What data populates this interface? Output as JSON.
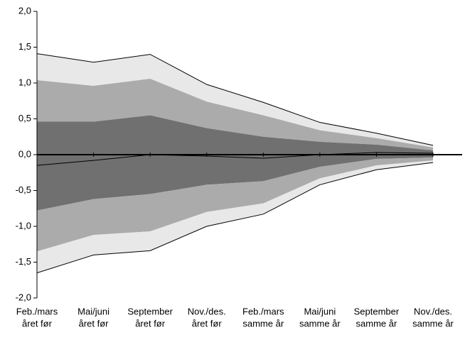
{
  "chart_data": {
    "type": "fan",
    "categories": [
      [
        "Feb./mars",
        "året før"
      ],
      [
        "Mai/juni",
        "året før"
      ],
      [
        "September",
        "året før"
      ],
      [
        "Nov./des.",
        "året før"
      ],
      [
        "Feb./mars",
        "samme år"
      ],
      [
        "Mai/juni",
        "samme år"
      ],
      [
        "September",
        "samme år"
      ],
      [
        "Nov./des.",
        "samme år"
      ]
    ],
    "series": [
      {
        "values": [
          1.41,
          1.29,
          1.4,
          0.98,
          0.73,
          0.45,
          0.3,
          0.13
        ],
        "color": "#000000",
        "fill": "#e8e8e8"
      },
      {
        "values": [
          1.04,
          0.96,
          1.06,
          0.74,
          0.55,
          0.34,
          0.23,
          0.1
        ],
        "fill": "#ababab"
      },
      {
        "values": [
          0.46,
          0.46,
          0.55,
          0.37,
          0.25,
          0.18,
          0.14,
          0.06
        ],
        "fill": "#707070"
      },
      {
        "values": [
          -0.15,
          -0.08,
          0.0,
          -0.02,
          -0.05,
          0.0,
          0.03,
          0.02
        ],
        "color": "#000000",
        "fill": "#707070"
      },
      {
        "values": [
          -0.78,
          -0.62,
          -0.55,
          -0.42,
          -0.37,
          -0.17,
          -0.06,
          -0.04
        ],
        "fill": "#ababab"
      },
      {
        "values": [
          -1.35,
          -1.12,
          -1.07,
          -0.8,
          -0.68,
          -0.33,
          -0.15,
          -0.08
        ],
        "fill": "#e8e8e8"
      },
      {
        "values": [
          -1.65,
          -1.4,
          -1.34,
          -1.0,
          -0.83,
          -0.42,
          -0.21,
          -0.11
        ],
        "color": "#000000"
      }
    ],
    "ylim": [
      -2.0,
      2.0
    ],
    "yticks": [
      {
        "value": -2.0,
        "label": "-2,0"
      },
      {
        "value": -1.5,
        "label": "-1,5"
      },
      {
        "value": -1.0,
        "label": "-1,0"
      },
      {
        "value": -0.5,
        "label": "-0,5"
      },
      {
        "value": 0.0,
        "label": "0,0"
      },
      {
        "value": 0.5,
        "label": "0,5"
      },
      {
        "value": 1.0,
        "label": "1,0"
      },
      {
        "value": 1.5,
        "label": "1,5"
      },
      {
        "value": 2.0,
        "label": "2,0"
      }
    ]
  }
}
